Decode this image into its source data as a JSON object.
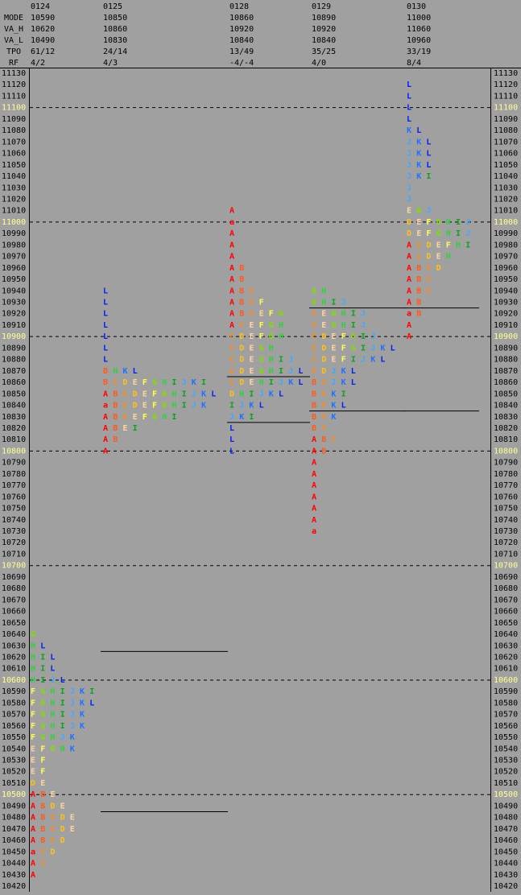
{
  "header_labels": [
    "MODE",
    "VA_H",
    "VA_L",
    "TPO",
    "RF"
  ],
  "price_axis": {
    "ylim": [
      10420,
      11130
    ],
    "ticks": [
      11130,
      11120,
      11110,
      11100,
      11090,
      11080,
      11070,
      11060,
      11050,
      11040,
      11030,
      11020,
      11010,
      11000,
      10990,
      10980,
      10970,
      10960,
      10950,
      10940,
      10930,
      10920,
      10910,
      10900,
      10890,
      10880,
      10870,
      10860,
      10850,
      10840,
      10830,
      10820,
      10810,
      10800,
      10790,
      10780,
      10770,
      10760,
      10750,
      10740,
      10730,
      10720,
      10710,
      10700,
      10690,
      10680,
      10670,
      10660,
      10650,
      10640,
      10630,
      10620,
      10610,
      10600,
      10590,
      10580,
      10570,
      10560,
      10550,
      10540,
      10530,
      10520,
      10510,
      10500,
      10490,
      10480,
      10470,
      10460,
      10450,
      10440,
      10430,
      10420
    ],
    "dashed_grid_every": 100,
    "highlight_color": "#ffff99"
  },
  "tpo_colors": {
    "A": "#ff0000",
    "a": "#ff0000",
    "B": "#ff5a1e",
    "C": "#ff8c1a",
    "D": "#ffc020",
    "E": "#ffd4a0",
    "F": "#ffff50",
    "G": "#7fe000",
    "H": "#30d040",
    "I": "#10a020",
    "J": "#40a8ff",
    "K": "#2070ff",
    "L": "#0020f0"
  },
  "days": [
    {
      "date": "0124",
      "mode": 10590,
      "va_high": 10620,
      "va_low": 10490,
      "tpo": "61/12",
      "rf": "4/2",
      "profile": [
        {
          "price": 10640,
          "tpos": "G"
        },
        {
          "price": 10630,
          "tpos": "HL"
        },
        {
          "price": 10620,
          "tpos": "HIL"
        },
        {
          "price": 10610,
          "tpos": "HIL"
        },
        {
          "price": 10600,
          "tpos": "HIJL"
        },
        {
          "price": 10590,
          "tpos": "FGHIJKI"
        },
        {
          "price": 10580,
          "tpos": "FGHIJKL"
        },
        {
          "price": 10570,
          "tpos": "FGHIJK"
        },
        {
          "price": 10560,
          "tpos": "FGHIJK"
        },
        {
          "price": 10550,
          "tpos": "FGHJK"
        },
        {
          "price": 10540,
          "tpos": "EFGHK"
        },
        {
          "price": 10530,
          "tpos": "EF"
        },
        {
          "price": 10520,
          "tpos": "EF"
        },
        {
          "price": 10510,
          "tpos": "DE"
        },
        {
          "price": 10500,
          "tpos": "ABE"
        },
        {
          "price": 10490,
          "tpos": "ABDE"
        },
        {
          "price": 10480,
          "tpos": "ABCDE"
        },
        {
          "price": 10470,
          "tpos": "ABCDE"
        },
        {
          "price": 10460,
          "tpos": "ABCD"
        },
        {
          "price": 10450,
          "tpos": "aCD"
        },
        {
          "price": 10440,
          "tpos": "AC"
        },
        {
          "price": 10430,
          "tpos": "A"
        }
      ]
    },
    {
      "date": "0125",
      "mode": 10850,
      "va_high": 10860,
      "va_low": 10830,
      "tpo": "24/14",
      "rf": "4/3",
      "profile": [
        {
          "price": 10940,
          "tpos": "L"
        },
        {
          "price": 10930,
          "tpos": "L"
        },
        {
          "price": 10920,
          "tpos": "L"
        },
        {
          "price": 10910,
          "tpos": "L"
        },
        {
          "price": 10900,
          "tpos": "L"
        },
        {
          "price": 10890,
          "tpos": "L"
        },
        {
          "price": 10880,
          "tpos": "L"
        },
        {
          "price": 10870,
          "tpos": "BHKL"
        },
        {
          "price": 10860,
          "tpos": "BCDEFGHIJKI"
        },
        {
          "price": 10850,
          "tpos": "ABCDEFGHIJKL"
        },
        {
          "price": 10840,
          "tpos": "aBCDEFGHIJK"
        },
        {
          "price": 10830,
          "tpos": "ABCEFGHI"
        },
        {
          "price": 10820,
          "tpos": "ABEI"
        },
        {
          "price": 10810,
          "tpos": "AB"
        },
        {
          "price": 10800,
          "tpos": "A"
        }
      ]
    },
    {
      "date": "0128",
      "mode": 10860,
      "va_high": 10920,
      "va_low": 10840,
      "tpo": "13/49",
      "rf": "-4/-4",
      "profile": [
        {
          "price": 11010,
          "tpos": "A"
        },
        {
          "price": 11000,
          "tpos": "a"
        },
        {
          "price": 10990,
          "tpos": "A"
        },
        {
          "price": 10980,
          "tpos": "A"
        },
        {
          "price": 10970,
          "tpos": "A"
        },
        {
          "price": 10960,
          "tpos": "AB"
        },
        {
          "price": 10950,
          "tpos": "AB"
        },
        {
          "price": 10940,
          "tpos": "ABC"
        },
        {
          "price": 10930,
          "tpos": "ABCF"
        },
        {
          "price": 10920,
          "tpos": "ABCEFG"
        },
        {
          "price": 10910,
          "tpos": "ACEFGH"
        },
        {
          "price": 10900,
          "tpos": "CDEFGH"
        },
        {
          "price": 10890,
          "tpos": "CDEGH"
        },
        {
          "price": 10880,
          "tpos": "CDEGHIJ"
        },
        {
          "price": 10870,
          "tpos": "CDEGHIJL"
        },
        {
          "price": 10860,
          "tpos": "CDEHIJKL"
        },
        {
          "price": 10850,
          "tpos": "DHIJKL"
        },
        {
          "price": 10840,
          "tpos": "IJKL"
        },
        {
          "price": 10830,
          "tpos": "JKI"
        },
        {
          "price": 10820,
          "tpos": "L"
        },
        {
          "price": 10810,
          "tpos": "L"
        },
        {
          "price": 10800,
          "tpos": "L"
        }
      ]
    },
    {
      "date": "0129",
      "mode": 10890,
      "va_high": 10920,
      "va_low": 10840,
      "tpo": "35/25",
      "rf": "4/0",
      "profile": [
        {
          "price": 10940,
          "tpos": "GH"
        },
        {
          "price": 10930,
          "tpos": "GHIJ"
        },
        {
          "price": 10920,
          "tpos": "CEGHIJ"
        },
        {
          "price": 10910,
          "tpos": "CEGHIJ"
        },
        {
          "price": 10900,
          "tpos": "CDEFGIJ"
        },
        {
          "price": 10890,
          "tpos": "CDEFGIJKL"
        },
        {
          "price": 10880,
          "tpos": "CDEFIJKL"
        },
        {
          "price": 10870,
          "tpos": "CDJKL"
        },
        {
          "price": 10860,
          "tpos": "BCJKL"
        },
        {
          "price": 10850,
          "tpos": "BCKI"
        },
        {
          "price": 10840,
          "tpos": "BCKL"
        },
        {
          "price": 10830,
          "tpos": "BCK"
        },
        {
          "price": 10820,
          "tpos": "BC"
        },
        {
          "price": 10810,
          "tpos": "ABC"
        },
        {
          "price": 10800,
          "tpos": "AB"
        },
        {
          "price": 10790,
          "tpos": "A"
        },
        {
          "price": 10780,
          "tpos": "A"
        },
        {
          "price": 10770,
          "tpos": "A"
        },
        {
          "price": 10760,
          "tpos": "A"
        },
        {
          "price": 10750,
          "tpos": "A"
        },
        {
          "price": 10740,
          "tpos": "A"
        },
        {
          "price": 10730,
          "tpos": "a"
        }
      ]
    },
    {
      "date": "0130",
      "mode": 11000,
      "va_high": 11060,
      "va_low": 10960,
      "tpo": "33/19",
      "rf": "8/4",
      "profile": [
        {
          "price": 11120,
          "tpos": "L"
        },
        {
          "price": 11110,
          "tpos": "L"
        },
        {
          "price": 11100,
          "tpos": "L"
        },
        {
          "price": 11090,
          "tpos": "L"
        },
        {
          "price": 11080,
          "tpos": "KL"
        },
        {
          "price": 11070,
          "tpos": "JKL"
        },
        {
          "price": 11060,
          "tpos": "JKL"
        },
        {
          "price": 11050,
          "tpos": "JKL"
        },
        {
          "price": 11040,
          "tpos": "JKI"
        },
        {
          "price": 11030,
          "tpos": "J"
        },
        {
          "price": 11020,
          "tpos": "J"
        },
        {
          "price": 11010,
          "tpos": "EGJ"
        },
        {
          "price": 11000,
          "tpos": "DEFGHIJ"
        },
        {
          "price": 10990,
          "tpos": "DEFGHIJ"
        },
        {
          "price": 10980,
          "tpos": "ACDEFHI"
        },
        {
          "price": 10970,
          "tpos": "ACDEH"
        },
        {
          "price": 10960,
          "tpos": "ABCD"
        },
        {
          "price": 10950,
          "tpos": "ABC"
        },
        {
          "price": 10940,
          "tpos": "ABC"
        },
        {
          "price": 10930,
          "tpos": "AB"
        },
        {
          "price": 10920,
          "tpos": "aB"
        },
        {
          "price": 10910,
          "tpos": "A"
        },
        {
          "price": 10900,
          "tpos": "A"
        }
      ]
    }
  ]
}
